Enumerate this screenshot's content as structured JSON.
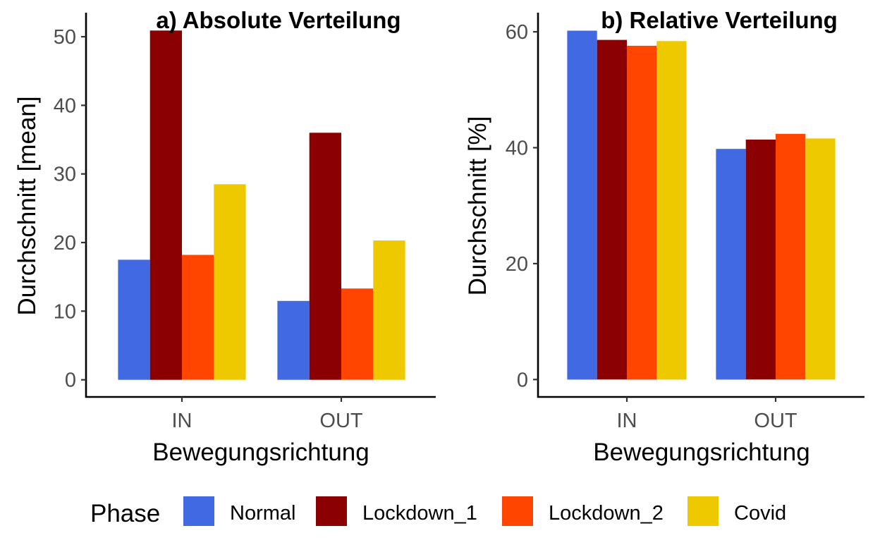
{
  "chart_data": [
    {
      "type": "bar",
      "title": "a) Absolute Verteilung",
      "xlabel": "Bewegungsrichtung",
      "ylabel": "Durchschnitt [mean]",
      "categories": [
        "IN",
        "OUT"
      ],
      "yticks": [
        "0",
        "10",
        "20",
        "30",
        "40",
        "50"
      ],
      "ylim": [
        -2.5,
        53.5
      ],
      "series": [
        {
          "name": "Normal",
          "values": [
            17.5,
            11.5
          ]
        },
        {
          "name": "Lockdown_1",
          "values": [
            50.9,
            36.0
          ]
        },
        {
          "name": "Lockdown_2",
          "values": [
            18.2,
            13.3
          ]
        },
        {
          "name": "Covid",
          "values": [
            28.5,
            20.3
          ]
        }
      ]
    },
    {
      "type": "bar",
      "title": "b) Relative Verteilung",
      "xlabel": "Bewegungsrichtung",
      "ylabel": "Durchschnitt [%]",
      "categories": [
        "IN",
        "OUT"
      ],
      "yticks": [
        "0",
        "20",
        "40",
        "60"
      ],
      "ylim": [
        -3.0,
        63.3
      ],
      "series": [
        {
          "name": "Normal",
          "values": [
            60.2,
            39.8
          ]
        },
        {
          "name": "Lockdown_1",
          "values": [
            58.6,
            41.4
          ]
        },
        {
          "name": "Lockdown_2",
          "values": [
            57.6,
            42.4
          ]
        },
        {
          "name": "Covid",
          "values": [
            58.4,
            41.6
          ]
        }
      ]
    }
  ],
  "legend": {
    "title": "Phase",
    "placement": "bottom",
    "items": [
      {
        "label": "Normal",
        "color": "#4169E1"
      },
      {
        "label": "Lockdown_1",
        "color": "#8B0000"
      },
      {
        "label": "Lockdown_2",
        "color": "#FF4500"
      },
      {
        "label": "Covid",
        "color": "#EEC900"
      }
    ]
  },
  "colors": {
    "Normal": "#4169E1",
    "Lockdown_1": "#8B0000",
    "Lockdown_2": "#FF4500",
    "Covid": "#EEC900"
  }
}
